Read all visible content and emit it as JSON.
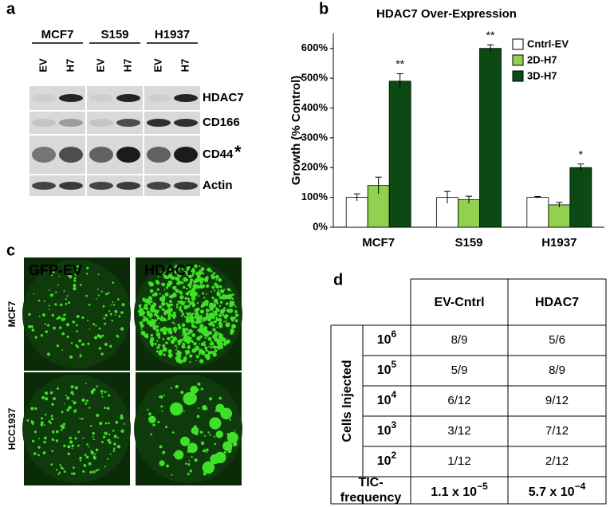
{
  "panel_labels": [
    "a",
    "b",
    "c",
    "d"
  ],
  "blot": {
    "cell_lines": [
      "MCF7",
      "S159",
      "H1937"
    ],
    "lanes": [
      "EV",
      "H7"
    ],
    "proteins": [
      "HDAC7",
      "CD166",
      "CD44",
      "Actin"
    ],
    "marker": "*"
  },
  "chart_data": {
    "type": "bar",
    "title": "HDAC7 Over-Expression",
    "y_label": "Growth (% Control)",
    "categories": [
      "MCF7",
      "S159",
      "H1937"
    ],
    "series": [
      {
        "name": "Cntrl-EV",
        "color": "#ffffff",
        "values": [
          100,
          100,
          100
        ],
        "errors": [
          12,
          20,
          3
        ]
      },
      {
        "name": "2D-H7",
        "color": "#92d050",
        "values": [
          140,
          92,
          75
        ],
        "errors": [
          28,
          12,
          8
        ]
      },
      {
        "name": "3D-H7",
        "color": "#0b4a12",
        "values": [
          490,
          600,
          200
        ],
        "errors": [
          25,
          12,
          12
        ]
      }
    ],
    "significance": [
      "**",
      "**",
      "*"
    ],
    "ylim": [
      0,
      650
    ],
    "yticks": [
      {
        "value": 0,
        "label": "0%"
      },
      {
        "value": 100,
        "label": "100%"
      },
      {
        "value": 200,
        "label": "200%"
      },
      {
        "value": 300,
        "label": "300%"
      },
      {
        "value": 400,
        "label": "400%"
      },
      {
        "value": 500,
        "label": "500%"
      },
      {
        "value": 600,
        "label": "600%"
      }
    ],
    "legend": "upper right"
  },
  "colonies": {
    "columns": [
      "GFP-EV",
      "HDAC7"
    ],
    "rows": [
      "MCF7",
      "HCC1937"
    ]
  },
  "table": {
    "header": [
      "EV-Cntrl",
      "HDAC7"
    ],
    "row_group": "Cells Injected",
    "rows": [
      {
        "base": "10",
        "exp": "6",
        "values": [
          "8/9",
          "5/6"
        ]
      },
      {
        "base": "10",
        "exp": "5",
        "values": [
          "5/9",
          "8/9"
        ]
      },
      {
        "base": "10",
        "exp": "4",
        "values": [
          "6/12",
          "9/12"
        ]
      },
      {
        "base": "10",
        "exp": "3",
        "values": [
          "3/12",
          "7/12"
        ]
      },
      {
        "base": "10",
        "exp": "2",
        "values": [
          "1/12",
          "2/12"
        ]
      }
    ],
    "footer": {
      "label": [
        "TIC-",
        "frequency"
      ],
      "values": [
        {
          "base": "1.1 x 10",
          "exp": "−5"
        },
        {
          "base": "5.7 x 10",
          "exp": "−4"
        }
      ]
    }
  }
}
